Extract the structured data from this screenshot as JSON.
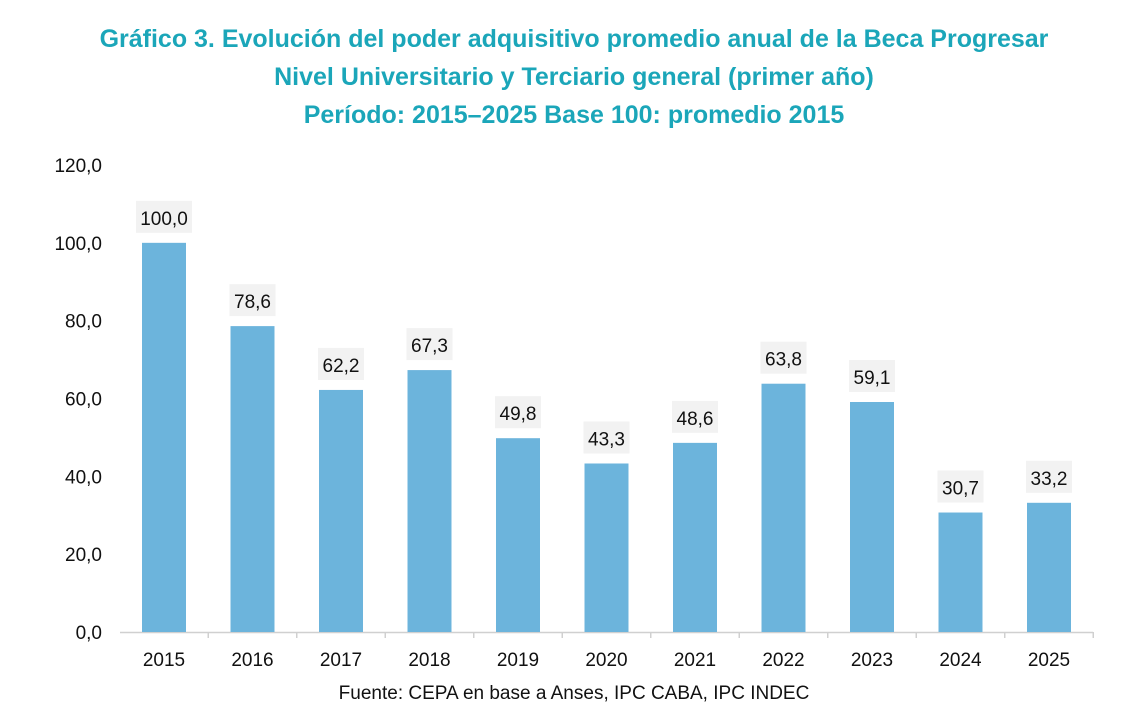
{
  "chart_data": {
    "type": "bar",
    "title_lines": [
      "Gráfico 3. Evolución del poder adquisitivo promedio anual de la Beca Progresar",
      "Nivel Universitario y Terciario general (primer año)",
      "Período: 2015–2025 Base 100: promedio 2015"
    ],
    "categories": [
      "2015",
      "2016",
      "2017",
      "2018",
      "2019",
      "2020",
      "2021",
      "2022",
      "2023",
      "2024",
      "2025"
    ],
    "values": [
      100.0,
      78.6,
      62.2,
      67.3,
      49.8,
      43.3,
      48.6,
      63.8,
      59.1,
      30.7,
      33.2
    ],
    "data_labels": [
      "100,0",
      "78,6",
      "62,2",
      "67,3",
      "49,8",
      "43,3",
      "48,6",
      "63,8",
      "59,1",
      "30,7",
      "33,2"
    ],
    "y_ticks": [
      "0,0",
      "20,0",
      "40,0",
      "60,0",
      "80,0",
      "100,0",
      "120,0"
    ],
    "ylim": [
      0,
      120
    ],
    "xlabel": "",
    "ylabel": "",
    "grid": false,
    "legend": "none",
    "bar_color": "#6cb4dc",
    "label_bg": "#f2f2f2",
    "title_color": "#1ba6b9",
    "source": "Fuente: CEPA en base a Anses, IPC CABA, IPC INDEC"
  }
}
